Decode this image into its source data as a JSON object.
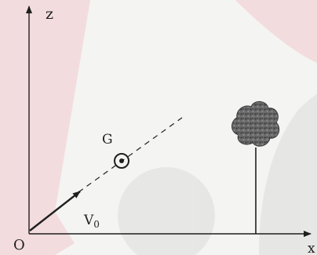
{
  "labels": {
    "axis_vertical": "z",
    "axis_horizontal": "x",
    "origin": "O",
    "ball_point": "G",
    "velocity_main": "V",
    "velocity_sub": "0"
  },
  "colors": {
    "background": "#f4f4f2",
    "ink": "#1f1f1f",
    "watermark_red": "#e07a86",
    "watermark_grey": "#d6d6d6",
    "foliage": "#5a5a5a"
  }
}
